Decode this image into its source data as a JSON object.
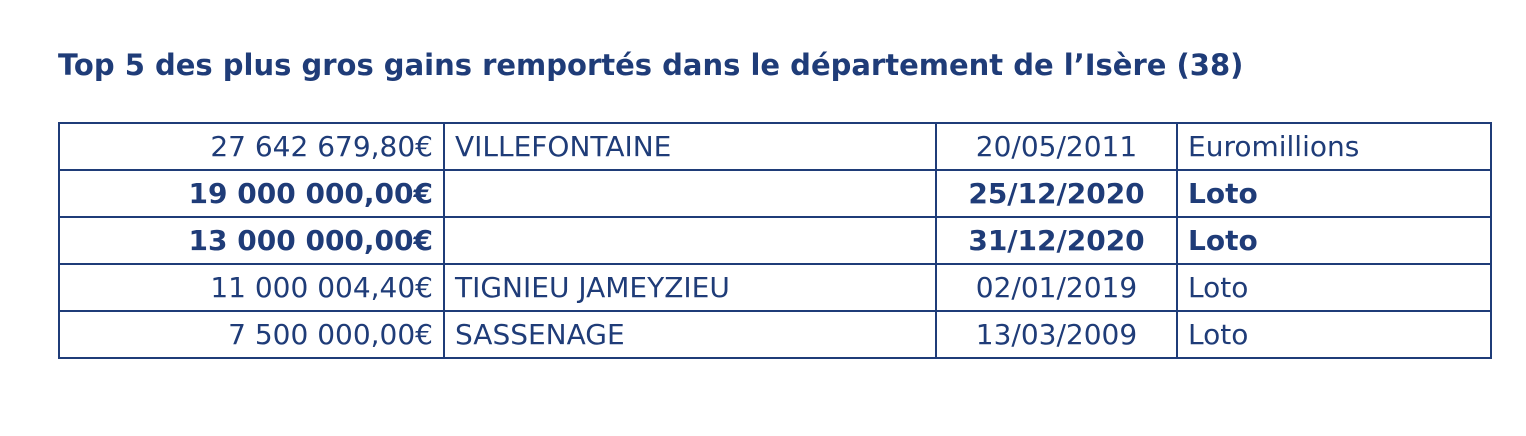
{
  "title": "Top 5 des plus gros gains remportés dans le département de l’Isère (38)",
  "rows": [
    {
      "amount": "27 642 679,80€",
      "city": "VILLEFONTAINE",
      "date": "20/05/2011",
      "game": "Euromillions",
      "bold": false
    },
    {
      "amount": "19 000 000,00€",
      "city": "",
      "date": "25/12/2020",
      "game": "Loto",
      "bold": true
    },
    {
      "amount": "13 000 000,00€",
      "city": "",
      "date": "31/12/2020",
      "game": "Loto",
      "bold": true
    },
    {
      "amount": "11 000 004,40€",
      "city": "TIGNIEU JAMEYZIEU",
      "date": "02/01/2019",
      "game": "Loto",
      "bold": false
    },
    {
      "amount": "7 500 000,00€",
      "city": "SASSENAGE",
      "date": "13/03/2009",
      "game": "Loto",
      "bold": false
    }
  ],
  "colors": {
    "text": "#1f3c78",
    "border": "#1f3c78",
    "background": "#ffffff"
  }
}
